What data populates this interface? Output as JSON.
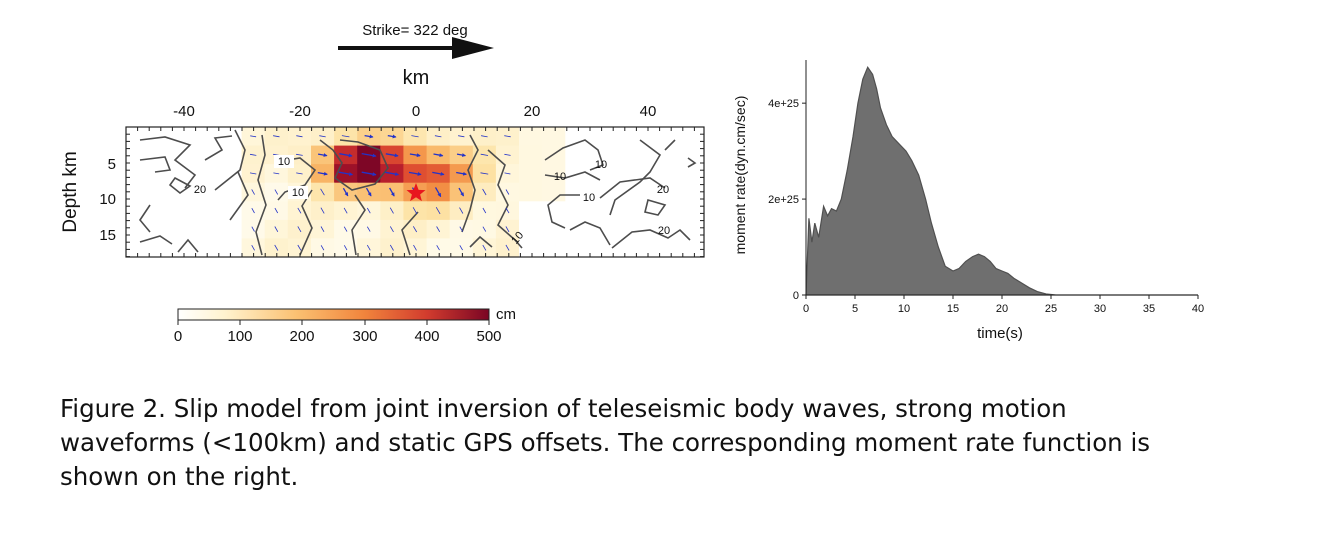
{
  "slip_panel": {
    "strike_label": "Strike= 322 deg",
    "x_axis_label": "km",
    "y_axis_label": "Depth km",
    "x_ticks": [
      -40,
      -20,
      0,
      20,
      40
    ],
    "y_ticks": [
      5,
      10,
      15
    ],
    "contour_labels": [
      "10",
      "10",
      "20",
      "10",
      "10",
      "10",
      "20",
      "20",
      "10"
    ],
    "colorbar": {
      "ticks": [
        0,
        100,
        200,
        300,
        400,
        500
      ],
      "unit": "cm"
    },
    "colors": {
      "low": "#fff7dc",
      "mid": "#f1843c",
      "high": "#8f0a23",
      "arrow": "#2333c8",
      "hypocenter": "#e8161e",
      "contour": "#4d4d4d"
    }
  },
  "chart_data": {
    "type": "area",
    "xlabel": "time(s)",
    "ylabel": "moment rate(dyn.cm/sec)",
    "xlim": [
      0,
      40
    ],
    "ylim": [
      0,
      4.9e+25
    ],
    "x_ticks": [
      0,
      5,
      10,
      15,
      20,
      25,
      30,
      35,
      40
    ],
    "y_ticks": [
      0,
      2e+25,
      4e+25
    ],
    "y_tick_labels": [
      "0",
      "2e+25",
      "4e+25"
    ],
    "fill_color": "#6f6f6f",
    "x": [
      0,
      0.3,
      0.6,
      0.9,
      1.3,
      1.8,
      2.2,
      2.6,
      3.1,
      3.6,
      4.2,
      4.8,
      5.3,
      5.8,
      6.3,
      6.8,
      7.2,
      7.6,
      8.2,
      8.8,
      9.5,
      10.2,
      10.8,
      11.5,
      12.2,
      12.8,
      13.5,
      14.2,
      15.0,
      15.6,
      16.3,
      17.0,
      17.6,
      18.2,
      18.8,
      19.4,
      20.0,
      20.6,
      21.2,
      22.0,
      22.8,
      23.6,
      24.5,
      25.5,
      27.0,
      30.0,
      35.0,
      40.0
    ],
    "y": [
      0,
      1.6e+25,
      1.1e+25,
      1.5e+25,
      1.2e+25,
      1.85e+25,
      1.65e+25,
      1.8e+25,
      1.75e+25,
      2e+25,
      2.6e+25,
      3.3e+25,
      4e+25,
      4.5e+25,
      4.75e+25,
      4.6e+25,
      4.3e+25,
      3.9e+25,
      3.55e+25,
      3.3e+25,
      3.15e+25,
      3e+25,
      2.8e+25,
      2.5e+25,
      2e+25,
      1.5e+25,
      1e+25,
      6e+24,
      5e+24,
      5.5e+24,
      7e+24,
      8e+24,
      8.5e+24,
      8e+24,
      7e+24,
      5.5e+24,
      5e+24,
      4.5e+24,
      3.5e+24,
      2.5e+24,
      1.5e+24,
      7e+23,
      2e+23,
      0,
      0,
      0,
      0,
      0
    ]
  },
  "caption": {
    "line1": "Figure 2. Slip model from joint inversion of teleseismic body waves, strong motion",
    "line2": "waveforms (<100km) and static GPS offsets. The corresponding moment rate function is",
    "line3": "shown on the right."
  }
}
